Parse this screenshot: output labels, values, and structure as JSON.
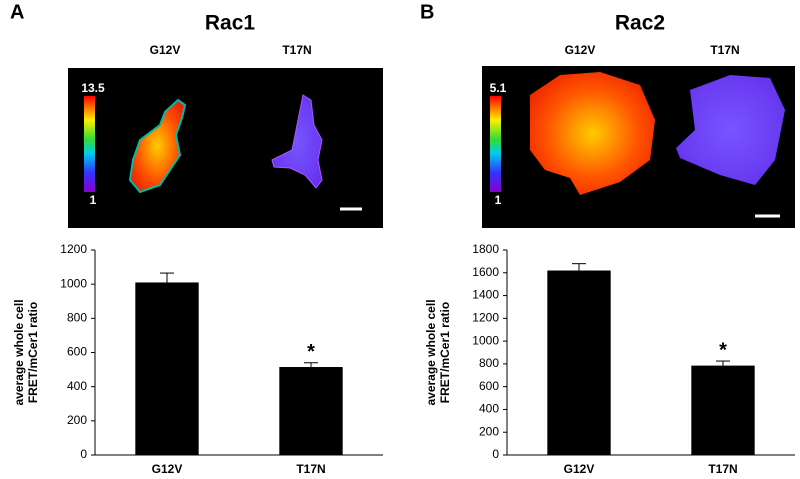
{
  "chart_data": [
    {
      "type": "bar",
      "panel_label": "A",
      "title": "Rac1",
      "image_columns": [
        "G12V",
        "T17N"
      ],
      "colorbar_max": 13.5,
      "colorbar_min": 1,
      "y_label": [
        "average whole cell",
        "FRET/mCer1 ratio"
      ],
      "categories": [
        "G12V",
        "T17N"
      ],
      "values": [
        1010,
        515
      ],
      "errors": [
        55,
        25
      ],
      "significance": [
        null,
        "*"
      ],
      "color": "#000000",
      "ylim": [
        0,
        1200
      ],
      "yticks": [
        0,
        200,
        400,
        600,
        800,
        1000,
        1200
      ],
      "grid": false
    },
    {
      "type": "bar",
      "panel_label": "B",
      "title": "Rac2",
      "image_columns": [
        "G12V",
        "T17N"
      ],
      "colorbar_max": 5.1,
      "colorbar_min": 1,
      "y_label": [
        "average whole cell",
        "FRET/mCer1 ratio"
      ],
      "categories": [
        "G12V",
        "T17N"
      ],
      "values": [
        1620,
        785
      ],
      "errors": [
        60,
        40
      ],
      "significance": [
        null,
        "*"
      ],
      "color": "#000000",
      "ylim": [
        0,
        1800
      ],
      "yticks": [
        0,
        200,
        400,
        600,
        800,
        1000,
        1200,
        1400,
        1600,
        1800
      ],
      "grid": false
    }
  ]
}
